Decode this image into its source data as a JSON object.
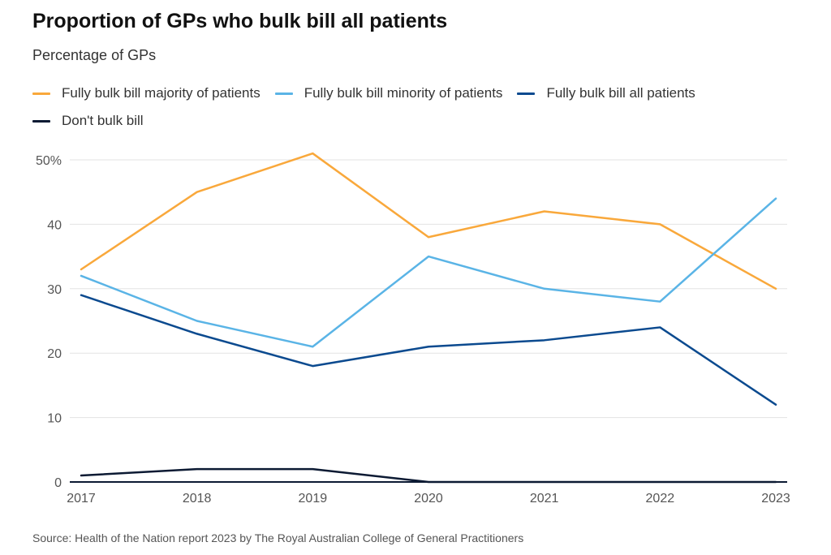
{
  "header": {
    "title": "Proportion of GPs who bulk bill all patients",
    "subtitle": "Percentage of GPs"
  },
  "legend": {
    "items": [
      {
        "label": "Fully bulk bill majority of patients",
        "color": "#f9a83b"
      },
      {
        "label": "Fully bulk bill minority of patients",
        "color": "#5ab4e6"
      },
      {
        "label": "Fully bulk bill all patients",
        "color": "#0b4a8f"
      },
      {
        "label": "Don't bulk bill",
        "color": "#0c1a33"
      }
    ]
  },
  "footer": {
    "source": "Source: Health of the Nation report 2023 by The Royal Australian College of General Practitioners"
  },
  "chart_data": {
    "type": "line",
    "title": "Proportion of GPs who bulk bill all patients",
    "subtitle": "Percentage of GPs",
    "xlabel": "",
    "ylabel": "",
    "x": [
      "2017",
      "2018",
      "2019",
      "2020",
      "2021",
      "2022",
      "2023"
    ],
    "ylim": [
      0,
      50
    ],
    "yticks": [
      0,
      10,
      20,
      30,
      40,
      50
    ],
    "ytick_labels": [
      "0",
      "10",
      "20",
      "30",
      "40",
      "50%"
    ],
    "grid": true,
    "legend_position": "top-left",
    "series": [
      {
        "name": "Fully bulk bill majority of patients",
        "color": "#f9a83b",
        "values": [
          33,
          45,
          51,
          38,
          42,
          40,
          30
        ]
      },
      {
        "name": "Fully bulk bill minority of patients",
        "color": "#5ab4e6",
        "values": [
          32,
          25,
          21,
          35,
          30,
          28,
          44
        ]
      },
      {
        "name": "Fully bulk bill all patients",
        "color": "#0b4a8f",
        "values": [
          29,
          23,
          18,
          21,
          22,
          24,
          12
        ]
      },
      {
        "name": "Don't bulk bill",
        "color": "#0c1a33",
        "values": [
          1,
          2,
          2,
          0,
          0,
          0,
          0
        ]
      }
    ]
  }
}
